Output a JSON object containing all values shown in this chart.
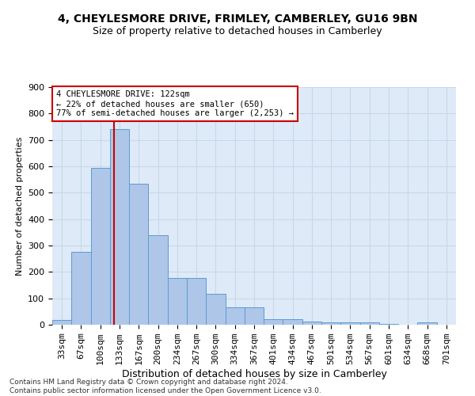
{
  "title1": "4, CHEYLESMORE DRIVE, FRIMLEY, CAMBERLEY, GU16 9BN",
  "title2": "Size of property relative to detached houses in Camberley",
  "xlabel": "Distribution of detached houses by size in Camberley",
  "ylabel": "Number of detached properties",
  "categories": [
    "33sqm",
    "67sqm",
    "100sqm",
    "133sqm",
    "167sqm",
    "200sqm",
    "234sqm",
    "267sqm",
    "300sqm",
    "334sqm",
    "367sqm",
    "401sqm",
    "434sqm",
    "467sqm",
    "501sqm",
    "534sqm",
    "567sqm",
    "601sqm",
    "634sqm",
    "668sqm",
    "701sqm"
  ],
  "values": [
    18,
    275,
    595,
    740,
    535,
    340,
    177,
    177,
    118,
    65,
    65,
    22,
    20,
    12,
    8,
    8,
    8,
    3,
    0,
    8,
    0
  ],
  "bar_color": "#aec6e8",
  "bar_edge_color": "#5b9bd5",
  "vline_color": "#cc0000",
  "annotation_line1": "4 CHEYLESMORE DRIVE: 122sqm",
  "annotation_line2": "← 22% of detached houses are smaller (650)",
  "annotation_line3": "77% of semi-detached houses are larger (2,253) →",
  "annotation_box_color": "#ffffff",
  "annotation_box_edge": "#cc0000",
  "ylim": [
    0,
    900
  ],
  "yticks": [
    0,
    100,
    200,
    300,
    400,
    500,
    600,
    700,
    800,
    900
  ],
  "grid_color": "#c8d8e8",
  "background_color": "#deeaf7",
  "footer_line1": "Contains HM Land Registry data © Crown copyright and database right 2024.",
  "footer_line2": "Contains public sector information licensed under the Open Government Licence v3.0.",
  "title1_fontsize": 10,
  "title2_fontsize": 9,
  "xlabel_fontsize": 9,
  "ylabel_fontsize": 8,
  "tick_fontsize": 8,
  "ann_fontsize": 7.5,
  "footer_fontsize": 6.5,
  "vline_pos": 2.73
}
